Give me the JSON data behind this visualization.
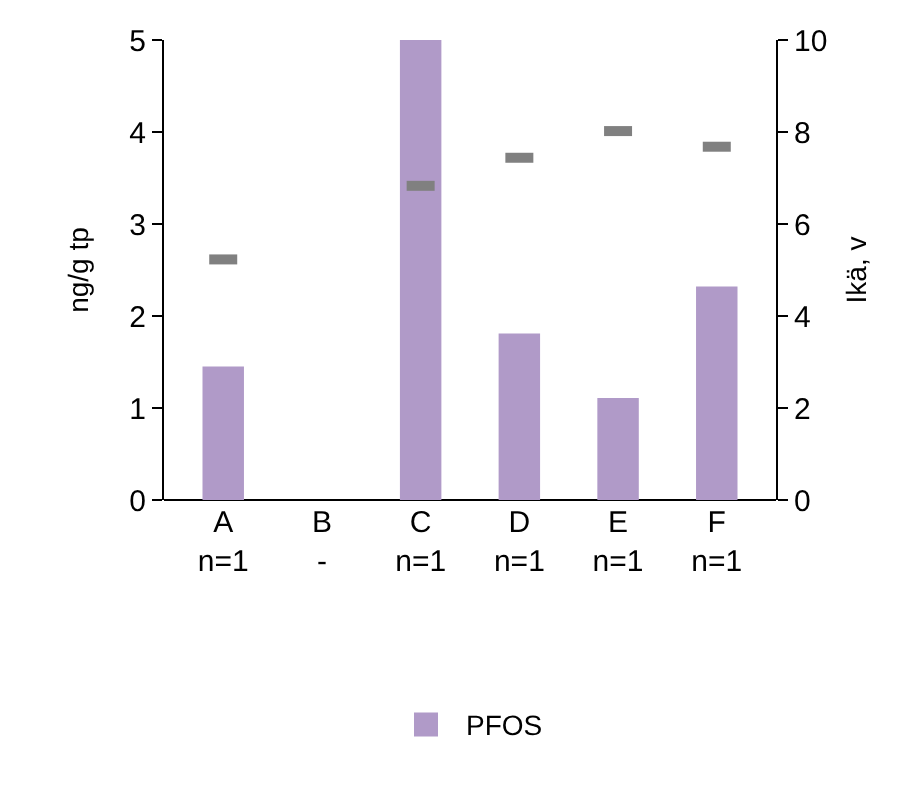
{
  "chart_data": {
    "type": "bar",
    "ylabel": "ng/g tp",
    "y2label": "Ikä, v",
    "categories": [
      "A\nn=1",
      "B\n-",
      "C\nn=1",
      "D\nn=1",
      "E\nn=1",
      "F\nn=1"
    ],
    "series": [
      {
        "name": "PFOS",
        "color": "#b09ac8",
        "values": [
          1.45,
          null,
          5,
          1.81,
          1.11,
          2.32
        ]
      },
      {
        "type": "scatter",
        "axis": "y2",
        "color": "#808080",
        "values": [
          5.23,
          null,
          6.83,
          7.44,
          8.02,
          7.68
        ]
      }
    ],
    "ylim": [
      0,
      5
    ],
    "yticks": [
      0,
      1,
      2,
      3,
      4,
      5
    ],
    "y2lim": [
      0,
      10
    ],
    "y2ticks": [
      0,
      2,
      4,
      6,
      8,
      10
    ],
    "grid": false,
    "legend": "bottom"
  }
}
